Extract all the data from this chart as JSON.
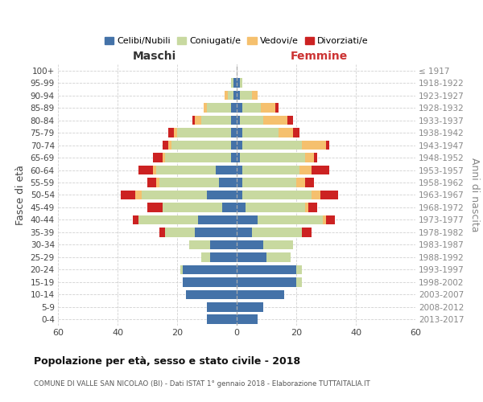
{
  "age_groups": [
    "100+",
    "95-99",
    "90-94",
    "85-89",
    "80-84",
    "75-79",
    "70-74",
    "65-69",
    "60-64",
    "55-59",
    "50-54",
    "45-49",
    "40-44",
    "35-39",
    "30-34",
    "25-29",
    "20-24",
    "15-19",
    "10-14",
    "5-9",
    "0-4"
  ],
  "birth_years": [
    "≤ 1917",
    "1918-1922",
    "1923-1927",
    "1928-1932",
    "1933-1937",
    "1938-1942",
    "1943-1947",
    "1948-1952",
    "1953-1957",
    "1958-1962",
    "1963-1967",
    "1968-1972",
    "1973-1977",
    "1978-1982",
    "1983-1987",
    "1988-1992",
    "1993-1997",
    "1998-2002",
    "2003-2007",
    "2008-2012",
    "2013-2017"
  ],
  "males": {
    "celibi": [
      0,
      1,
      1,
      2,
      2,
      2,
      2,
      2,
      7,
      6,
      10,
      5,
      13,
      14,
      9,
      9,
      18,
      18,
      17,
      10,
      10
    ],
    "coniugati": [
      0,
      1,
      2,
      8,
      10,
      18,
      20,
      22,
      20,
      20,
      22,
      20,
      20,
      10,
      7,
      3,
      1,
      0,
      0,
      0,
      0
    ],
    "vedovi": [
      0,
      0,
      1,
      1,
      2,
      1,
      1,
      1,
      1,
      1,
      2,
      0,
      0,
      0,
      0,
      0,
      0,
      0,
      0,
      0,
      0
    ],
    "divorziati": [
      0,
      0,
      0,
      0,
      1,
      2,
      2,
      3,
      5,
      3,
      5,
      5,
      2,
      2,
      0,
      0,
      0,
      0,
      0,
      0,
      0
    ]
  },
  "females": {
    "nubili": [
      0,
      1,
      1,
      2,
      1,
      2,
      2,
      1,
      2,
      2,
      2,
      3,
      7,
      5,
      9,
      10,
      20,
      20,
      16,
      9,
      7
    ],
    "coniugate": [
      0,
      1,
      4,
      6,
      8,
      12,
      20,
      22,
      19,
      18,
      23,
      20,
      22,
      17,
      10,
      8,
      2,
      2,
      0,
      0,
      0
    ],
    "vedove": [
      0,
      0,
      2,
      5,
      8,
      5,
      8,
      3,
      4,
      3,
      3,
      1,
      1,
      0,
      0,
      0,
      0,
      0,
      0,
      0,
      0
    ],
    "divorziate": [
      0,
      0,
      0,
      1,
      2,
      2,
      1,
      1,
      6,
      3,
      6,
      3,
      3,
      3,
      0,
      0,
      0,
      0,
      0,
      0,
      0
    ]
  },
  "colors": {
    "celibi": "#4472a8",
    "coniugati": "#c8d9a0",
    "vedovi": "#f5c06e",
    "divorziati": "#cc2222"
  },
  "xlim": 60,
  "title": "Popolazione per età, sesso e stato civile - 2018",
  "subtitle": "COMUNE DI VALLE SAN NICOLAO (BI) - Dati ISTAT 1° gennaio 2018 - Elaborazione TUTTAITALIA.IT",
  "ylabel_left": "Fasce di età",
  "ylabel_right": "Anni di nascita",
  "header_left": "Maschi",
  "header_right": "Femmine",
  "legend_labels": [
    "Celibi/Nubili",
    "Coniugati/e",
    "Vedovi/e",
    "Divorziati/e"
  ],
  "background_color": "#ffffff",
  "grid_color": "#cccccc"
}
